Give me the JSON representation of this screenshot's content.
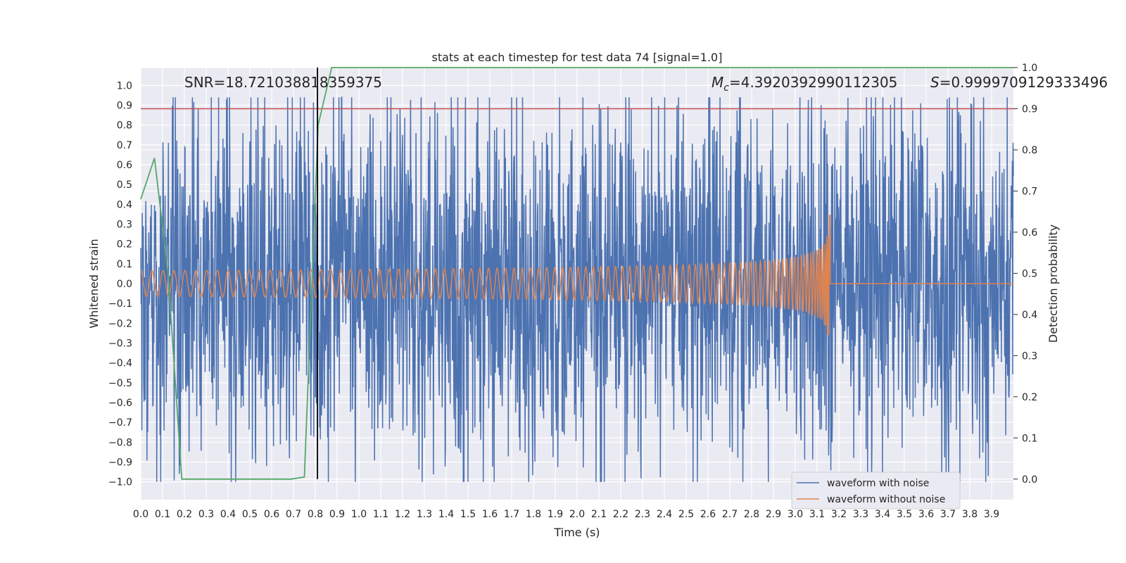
{
  "chart_data": {
    "type": "line",
    "title": "stats at each timestep for test data 74 [signal=1.0]",
    "xlabel": "Time (s)",
    "ylabel": "Whitened strain",
    "ylabel_right": "Detection probability",
    "xlim": [
      0.0,
      3.9999
    ],
    "ylim": [
      -1.09,
      1.09
    ],
    "ylim_right": [
      -0.05,
      1.0
    ],
    "x_ticks": [
      "0.0",
      "0.1",
      "0.2",
      "0.3",
      "0.4",
      "0.5",
      "0.6",
      "0.7",
      "0.8",
      "0.9",
      "1.0",
      "1.1",
      "1.2",
      "1.3",
      "1.4",
      "1.5",
      "1.6",
      "1.7",
      "1.8",
      "1.9",
      "2.0",
      "2.1",
      "2.2",
      "2.3",
      "2.4",
      "2.5",
      "2.6",
      "2.7",
      "2.8",
      "2.9",
      "3.0",
      "3.1",
      "3.2",
      "3.3",
      "3.4",
      "3.5",
      "3.6",
      "3.7",
      "3.8",
      "3.9"
    ],
    "y_ticks": [
      "1.0",
      "0.9",
      "0.8",
      "0.7",
      "0.6",
      "0.5",
      "0.4",
      "0.3",
      "0.2",
      "0.1",
      "0.0",
      "−0.1",
      "−0.2",
      "−0.3",
      "−0.4",
      "−0.5",
      "−0.6",
      "−0.7",
      "−0.8",
      "−0.9",
      "−1.0"
    ],
    "y_ticks_right": [
      "1.0",
      "0.9",
      "0.8",
      "0.7",
      "0.6",
      "0.5",
      "0.4",
      "0.3",
      "0.2",
      "0.1",
      "0.0"
    ],
    "annotations": {
      "snr": "SNR=18.721038818359375",
      "mc_symbol": "M",
      "mc_sub": "c",
      "mc_value": "=4.392039299011230 5",
      "s_text": "S=0.9999709129333496"
    },
    "threshold_right": 0.9,
    "detection_time": 0.81,
    "merger_time": 3.16,
    "noise_amplitude": 0.45,
    "series": [
      {
        "name": "waveform with noise",
        "color": "#4c72b0",
        "axis": "left"
      },
      {
        "name": "waveform without noise",
        "color": "#dd8452",
        "axis": "left"
      },
      {
        "name": "detection probability",
        "color": "#55a868",
        "axis": "right",
        "x": [
          0.0,
          0.063,
          0.125,
          0.188,
          0.25,
          0.313,
          0.375,
          0.438,
          0.5,
          0.563,
          0.625,
          0.688,
          0.75,
          0.813,
          0.875,
          0.938,
          1.0,
          1.5,
          2.0,
          2.5,
          3.0,
          3.5,
          4.0
        ],
        "values": [
          0.68,
          0.78,
          0.5,
          0.0,
          0.0,
          0.0,
          0.0,
          0.0,
          0.0,
          0.0,
          0.0,
          0.0,
          0.005,
          0.86,
          1.0,
          1.0,
          1.0,
          1.0,
          1.0,
          1.0,
          1.0,
          1.0,
          1.0
        ]
      }
    ],
    "colors": {
      "background": "#eaeaf2",
      "grid": "#ffffff",
      "threshold": "#c44e52",
      "detection_line": "#000000"
    }
  }
}
